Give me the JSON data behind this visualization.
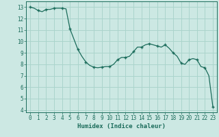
{
  "x": [
    0,
    0.5,
    1,
    1.5,
    2,
    2.5,
    3,
    3.5,
    4,
    4.5,
    5,
    5.5,
    6,
    6.5,
    7,
    7.5,
    8,
    8.5,
    9,
    9.5,
    10,
    10.5,
    11,
    11.5,
    12,
    12.5,
    13,
    13.5,
    14,
    14.5,
    15,
    15.5,
    16,
    16.5,
    17,
    17.5,
    18,
    18.5,
    19,
    19.5,
    20,
    20.5,
    21,
    21.5,
    22,
    22.5,
    23
  ],
  "y": [
    13.0,
    12.9,
    12.7,
    12.6,
    12.8,
    12.8,
    12.9,
    12.9,
    12.9,
    12.85,
    11.1,
    10.2,
    9.3,
    8.7,
    8.2,
    7.9,
    7.75,
    7.7,
    7.75,
    7.8,
    7.8,
    8.0,
    8.4,
    8.6,
    8.6,
    8.7,
    9.1,
    9.5,
    9.5,
    9.7,
    9.8,
    9.7,
    9.6,
    9.5,
    9.7,
    9.4,
    9.0,
    8.7,
    8.1,
    8.0,
    8.4,
    8.5,
    8.4,
    7.8,
    7.7,
    7.0,
    4.3
  ],
  "markers_x": [
    0,
    1,
    2,
    3,
    4,
    5,
    6,
    7,
    8,
    9,
    10,
    11,
    12,
    13,
    14,
    15,
    16,
    17,
    18,
    19,
    20,
    21,
    22,
    23
  ],
  "markers_y": [
    13.0,
    12.7,
    12.8,
    12.9,
    12.9,
    11.1,
    9.3,
    8.2,
    7.75,
    7.75,
    7.8,
    8.4,
    8.6,
    9.1,
    9.5,
    9.8,
    9.6,
    9.7,
    9.0,
    8.1,
    8.4,
    8.4,
    7.7,
    4.3
  ],
  "line_color": "#1a6b5a",
  "marker_color": "#1a6b5a",
  "bg_color": "#cce8e3",
  "grid_color": "#aad4cc",
  "xlabel": "Humidex (Indice chaleur)",
  "xlim": [
    -0.5,
    23.5
  ],
  "ylim": [
    3.8,
    13.5
  ],
  "yticks": [
    4,
    5,
    6,
    7,
    8,
    9,
    10,
    11,
    12,
    13
  ],
  "xticks": [
    0,
    1,
    2,
    3,
    4,
    5,
    6,
    7,
    8,
    9,
    10,
    11,
    12,
    13,
    14,
    15,
    16,
    17,
    18,
    19,
    20,
    21,
    22,
    23
  ],
  "label_fontsize": 6.5,
  "tick_fontsize": 5.5
}
